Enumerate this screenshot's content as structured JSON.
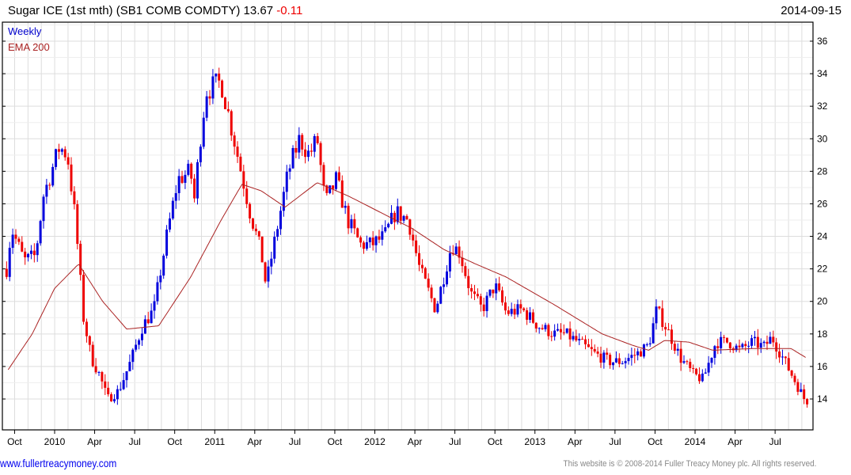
{
  "header": {
    "title": "Sugar ICE (1st mth)  (SB1 COMB COMDTY) 13.67",
    "change": "-0.11",
    "date": "2014-09-15"
  },
  "legend": {
    "period": "Weekly",
    "indicator": "EMA 200"
  },
  "footer": {
    "site": "www.fullertreacymoney.com",
    "copyright": "This website is © 2008-2014 Fuller Treacy Money plc. All rights reserved."
  },
  "colors": {
    "up": "#0000dd",
    "down": "#ee0000",
    "ema": "#aa2222",
    "grid": "#dddddd"
  },
  "chart_data": {
    "type": "candlestick",
    "title": "Sugar ICE (1st mth) (SB1 COMB COMDTY)",
    "xlim": [
      2009.66,
      2014.76
    ],
    "ylim": [
      12.8,
      37.2
    ],
    "y_ticks": [
      "14",
      "16",
      "18",
      "20",
      "22",
      "24",
      "26",
      "28",
      "30",
      "32",
      "34",
      "36"
    ],
    "x_ticks": [
      {
        "t": 2009.75,
        "label": "Oct"
      },
      {
        "t": 2010.0,
        "label": "2010"
      },
      {
        "t": 2010.25,
        "label": "Apr"
      },
      {
        "t": 2010.5,
        "label": "Jul"
      },
      {
        "t": 2010.75,
        "label": "Oct"
      },
      {
        "t": 2011.0,
        "label": "2011"
      },
      {
        "t": 2011.25,
        "label": "Apr"
      },
      {
        "t": 2011.5,
        "label": "Jul"
      },
      {
        "t": 2011.75,
        "label": "Oct"
      },
      {
        "t": 2012.0,
        "label": "2012"
      },
      {
        "t": 2012.25,
        "label": "Apr"
      },
      {
        "t": 2012.5,
        "label": "Jul"
      },
      {
        "t": 2012.75,
        "label": "Oct"
      },
      {
        "t": 2013.0,
        "label": "2013"
      },
      {
        "t": 2013.25,
        "label": "Apr"
      },
      {
        "t": 2013.5,
        "label": "Jul"
      },
      {
        "t": 2013.75,
        "label": "Oct"
      },
      {
        "t": 2014.0,
        "label": "2014"
      },
      {
        "t": 2014.25,
        "label": "Apr"
      },
      {
        "t": 2014.5,
        "label": "Jul"
      }
    ],
    "price_close_approx": [
      [
        2009.7,
        22
      ],
      [
        2009.73,
        24.5
      ],
      [
        2009.81,
        22.5
      ],
      [
        2009.88,
        22.8
      ],
      [
        2009.93,
        26.5
      ],
      [
        2010.03,
        29.5
      ],
      [
        2010.08,
        29
      ],
      [
        2010.13,
        25
      ],
      [
        2010.18,
        19
      ],
      [
        2010.23,
        16.5
      ],
      [
        2010.28,
        15.5
      ],
      [
        2010.33,
        14
      ],
      [
        2010.4,
        14.5
      ],
      [
        2010.47,
        16.2
      ],
      [
        2010.55,
        18.5
      ],
      [
        2010.62,
        19.5
      ],
      [
        2010.7,
        24
      ],
      [
        2010.77,
        27.5
      ],
      [
        2010.85,
        28
      ],
      [
        2010.87,
        26
      ],
      [
        2010.92,
        31
      ],
      [
        2010.95,
        33
      ],
      [
        2011.04,
        33.5
      ],
      [
        2011.12,
        30
      ],
      [
        2011.22,
        25.5
      ],
      [
        2011.29,
        23
      ],
      [
        2011.32,
        21
      ],
      [
        2011.36,
        23
      ],
      [
        2011.46,
        28
      ],
      [
        2011.53,
        30
      ],
      [
        2011.59,
        29
      ],
      [
        2011.64,
        30
      ],
      [
        2011.69,
        26
      ],
      [
        2011.76,
        27.5
      ],
      [
        2011.83,
        25
      ],
      [
        2011.91,
        23.5
      ],
      [
        2011.98,
        23.5
      ],
      [
        2012.06,
        24
      ],
      [
        2012.13,
        25.5
      ],
      [
        2012.21,
        25
      ],
      [
        2012.28,
        22
      ],
      [
        2012.38,
        19.5
      ],
      [
        2012.48,
        23.5
      ],
      [
        2012.53,
        23
      ],
      [
        2012.6,
        20.5
      ],
      [
        2012.67,
        19.5
      ],
      [
        2012.75,
        21
      ],
      [
        2012.82,
        19.3
      ],
      [
        2012.92,
        19.5
      ],
      [
        2013.02,
        18.5
      ],
      [
        2013.12,
        18
      ],
      [
        2013.19,
        18
      ],
      [
        2013.27,
        17.5
      ],
      [
        2013.37,
        16.8
      ],
      [
        2013.47,
        16.3
      ],
      [
        2013.54,
        16.3
      ],
      [
        2013.64,
        16.8
      ],
      [
        2013.71,
        17.3
      ],
      [
        2013.76,
        19.5
      ],
      [
        2013.84,
        18
      ],
      [
        2013.91,
        16.5
      ],
      [
        2013.99,
        15.5
      ],
      [
        2014.05,
        15.2
      ],
      [
        2014.13,
        17.5
      ],
      [
        2014.21,
        17.5
      ],
      [
        2014.28,
        17
      ],
      [
        2014.36,
        17.5
      ],
      [
        2014.43,
        17.2
      ],
      [
        2014.48,
        17.8
      ],
      [
        2014.55,
        16.5
      ],
      [
        2014.63,
        15
      ],
      [
        2014.7,
        13.67
      ]
    ],
    "ema_200": [
      [
        2009.71,
        15.8
      ],
      [
        2009.86,
        18
      ],
      [
        2010.0,
        20.8
      ],
      [
        2010.15,
        22.3
      ],
      [
        2010.3,
        20
      ],
      [
        2010.45,
        18.3
      ],
      [
        2010.65,
        18.5
      ],
      [
        2010.85,
        21.5
      ],
      [
        2011.04,
        25
      ],
      [
        2011.17,
        27.2
      ],
      [
        2011.29,
        26.8
      ],
      [
        2011.44,
        25.8
      ],
      [
        2011.64,
        27.3
      ],
      [
        2011.83,
        26.5
      ],
      [
        2012.03,
        25.5
      ],
      [
        2012.23,
        24.5
      ],
      [
        2012.43,
        23.2
      ],
      [
        2012.63,
        22.3
      ],
      [
        2012.82,
        21.5
      ],
      [
        2013.12,
        19.8
      ],
      [
        2013.42,
        18
      ],
      [
        2013.61,
        17.3
      ],
      [
        2013.71,
        17.0
      ],
      [
        2013.81,
        17.6
      ],
      [
        2013.96,
        17.5
      ],
      [
        2014.11,
        17
      ],
      [
        2014.36,
        17.1
      ],
      [
        2014.6,
        17.1
      ],
      [
        2014.7,
        16.5
      ]
    ]
  }
}
